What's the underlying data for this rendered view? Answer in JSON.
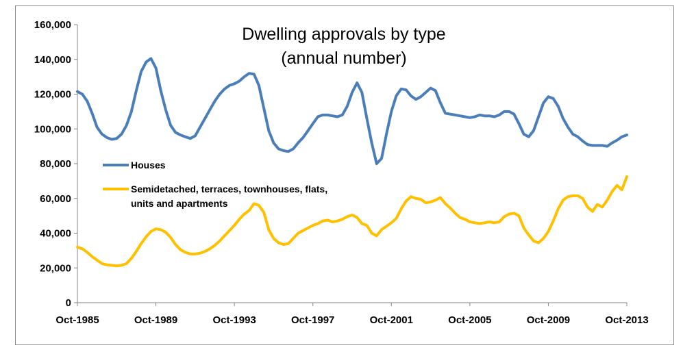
{
  "chart_data": {
    "type": "line",
    "title_lines": [
      "Dwelling approvals by type",
      "(annual number)"
    ],
    "xlabel": "",
    "ylabel": "",
    "ylim": [
      0,
      160000
    ],
    "yticks": [
      0,
      20000,
      40000,
      60000,
      80000,
      100000,
      120000,
      140000,
      160000
    ],
    "ytick_labels": [
      "0",
      "20,000",
      "40,000",
      "60,000",
      "80,000",
      "100,000",
      "120,000",
      "140,000",
      "160,000"
    ],
    "xlim": [
      1985.75,
      2013.75
    ],
    "xticks": [
      1985.75,
      1989.75,
      1993.75,
      1997.75,
      2001.75,
      2005.75,
      2009.75,
      2013.75
    ],
    "xtick_labels": [
      "Oct-1985",
      "Oct-1989",
      "Oct-1993",
      "Oct-1997",
      "Oct-2001",
      "Oct-2005",
      "Oct-2009",
      "Oct-2013"
    ],
    "grid": false,
    "legend_position": "center-left",
    "series": [
      {
        "name": "Houses",
        "color": "#4a7ebb",
        "x": [
          1985.75,
          1986.0,
          1986.25,
          1986.5,
          1986.75,
          1987.0,
          1987.25,
          1987.5,
          1987.75,
          1988.0,
          1988.25,
          1988.5,
          1988.75,
          1989.0,
          1989.25,
          1989.5,
          1989.75,
          1990.0,
          1990.25,
          1990.5,
          1990.75,
          1991.0,
          1991.25,
          1991.5,
          1991.75,
          1992.0,
          1992.25,
          1992.5,
          1992.75,
          1993.0,
          1993.25,
          1993.5,
          1993.75,
          1994.0,
          1994.25,
          1994.5,
          1994.75,
          1995.0,
          1995.25,
          1995.5,
          1995.75,
          1996.0,
          1996.25,
          1996.5,
          1996.75,
          1997.0,
          1997.25,
          1997.5,
          1997.75,
          1998.0,
          1998.25,
          1998.5,
          1998.75,
          1999.0,
          1999.25,
          1999.5,
          1999.75,
          2000.0,
          2000.25,
          2000.5,
          2000.75,
          2001.0,
          2001.25,
          2001.5,
          2001.75,
          2002.0,
          2002.25,
          2002.5,
          2002.75,
          2003.0,
          2003.25,
          2003.5,
          2003.75,
          2004.0,
          2004.25,
          2004.5,
          2004.75,
          2005.0,
          2005.25,
          2005.5,
          2005.75,
          2006.0,
          2006.25,
          2006.5,
          2006.75,
          2007.0,
          2007.25,
          2007.5,
          2007.75,
          2008.0,
          2008.25,
          2008.5,
          2008.75,
          2009.0,
          2009.25,
          2009.5,
          2009.75,
          2010.0,
          2010.25,
          2010.5,
          2010.75,
          2011.0,
          2011.25,
          2011.5,
          2011.75,
          2012.0,
          2012.25,
          2012.5,
          2012.75,
          2013.0,
          2013.25,
          2013.5,
          2013.75
        ],
        "values": [
          121500,
          120000,
          116000,
          109000,
          101000,
          97000,
          95000,
          94000,
          94500,
          97000,
          102000,
          110000,
          122000,
          133000,
          138500,
          140500,
          135000,
          122000,
          111000,
          102000,
          98000,
          96500,
          95500,
          94500,
          96000,
          101000,
          106000,
          111000,
          116000,
          120000,
          123000,
          125000,
          126000,
          127500,
          130000,
          132000,
          131500,
          125000,
          112000,
          99000,
          92000,
          88500,
          87500,
          87000,
          88500,
          92000,
          95000,
          99000,
          103000,
          107000,
          108000,
          108000,
          107500,
          107000,
          108000,
          113000,
          121000,
          126500,
          121000,
          106000,
          92000,
          80000,
          83000,
          97000,
          110000,
          119000,
          123000,
          122500,
          119000,
          117000,
          118500,
          121000,
          123500,
          122000,
          115000,
          109000,
          108500,
          108000,
          107500,
          107000,
          106500,
          107000,
          108000,
          107500,
          107500,
          107000,
          108000,
          110000,
          110000,
          108500,
          103000,
          97000,
          95500,
          99000,
          107000,
          115000,
          118500,
          117500,
          113000,
          106000,
          101000,
          97000,
          95500,
          93000,
          91000,
          90500,
          90500,
          90500,
          90000,
          92000,
          93500,
          95500,
          96500
        ]
      },
      {
        "name": "Semidetached, terraces, townhouses, flats, units and apartments",
        "color": "#ffc000",
        "x": [
          1985.75,
          1986.0,
          1986.25,
          1986.5,
          1986.75,
          1987.0,
          1987.25,
          1987.5,
          1987.75,
          1988.0,
          1988.25,
          1988.5,
          1988.75,
          1989.0,
          1989.25,
          1989.5,
          1989.75,
          1990.0,
          1990.25,
          1990.5,
          1990.75,
          1991.0,
          1991.25,
          1991.5,
          1991.75,
          1992.0,
          1992.25,
          1992.5,
          1992.75,
          1993.0,
          1993.25,
          1993.5,
          1993.75,
          1994.0,
          1994.25,
          1994.5,
          1994.75,
          1995.0,
          1995.25,
          1995.5,
          1995.75,
          1996.0,
          1996.25,
          1996.5,
          1996.75,
          1997.0,
          1997.25,
          1997.5,
          1997.75,
          1998.0,
          1998.25,
          1998.5,
          1998.75,
          1999.0,
          1999.25,
          1999.5,
          1999.75,
          2000.0,
          2000.25,
          2000.5,
          2000.75,
          2001.0,
          2001.25,
          2001.5,
          2001.75,
          2002.0,
          2002.25,
          2002.5,
          2002.75,
          2003.0,
          2003.25,
          2003.5,
          2003.75,
          2004.0,
          2004.25,
          2004.5,
          2004.75,
          2005.0,
          2005.25,
          2005.5,
          2005.75,
          2006.0,
          2006.25,
          2006.5,
          2006.75,
          2007.0,
          2007.25,
          2007.5,
          2007.75,
          2008.0,
          2008.25,
          2008.5,
          2008.75,
          2009.0,
          2009.25,
          2009.5,
          2009.75,
          2010.0,
          2010.25,
          2010.5,
          2010.75,
          2011.0,
          2011.25,
          2011.5,
          2011.75,
          2012.0,
          2012.25,
          2012.5,
          2012.75,
          2013.0,
          2013.25,
          2013.5,
          2013.75
        ],
        "values": [
          32000,
          31000,
          29000,
          26500,
          24500,
          22500,
          21800,
          21500,
          21200,
          21500,
          22500,
          25500,
          29500,
          34000,
          38000,
          41000,
          42500,
          42000,
          40500,
          37500,
          33500,
          30500,
          29000,
          28000,
          28000,
          28500,
          29500,
          31000,
          33000,
          35500,
          38500,
          41500,
          44500,
          48000,
          51000,
          53000,
          57000,
          56000,
          52000,
          42000,
          37000,
          34500,
          33500,
          34000,
          37000,
          40000,
          41500,
          43000,
          44500,
          45500,
          47000,
          47500,
          46500,
          47000,
          48000,
          49500,
          50500,
          49000,
          45500,
          44500,
          40000,
          38500,
          42000,
          44000,
          46000,
          48500,
          54000,
          58500,
          61000,
          60000,
          59500,
          57500,
          58000,
          59000,
          60500,
          57000,
          54500,
          51500,
          49000,
          48000,
          46500,
          46000,
          45500,
          46000,
          46500,
          46000,
          46500,
          49500,
          51000,
          51500,
          50000,
          43000,
          39000,
          35500,
          34500,
          37000,
          41000,
          47000,
          54000,
          59000,
          61000,
          61500,
          61500,
          60000,
          55000,
          52500,
          56500,
          55000,
          59000,
          64000,
          67500,
          65000,
          72500
        ]
      }
    ]
  }
}
